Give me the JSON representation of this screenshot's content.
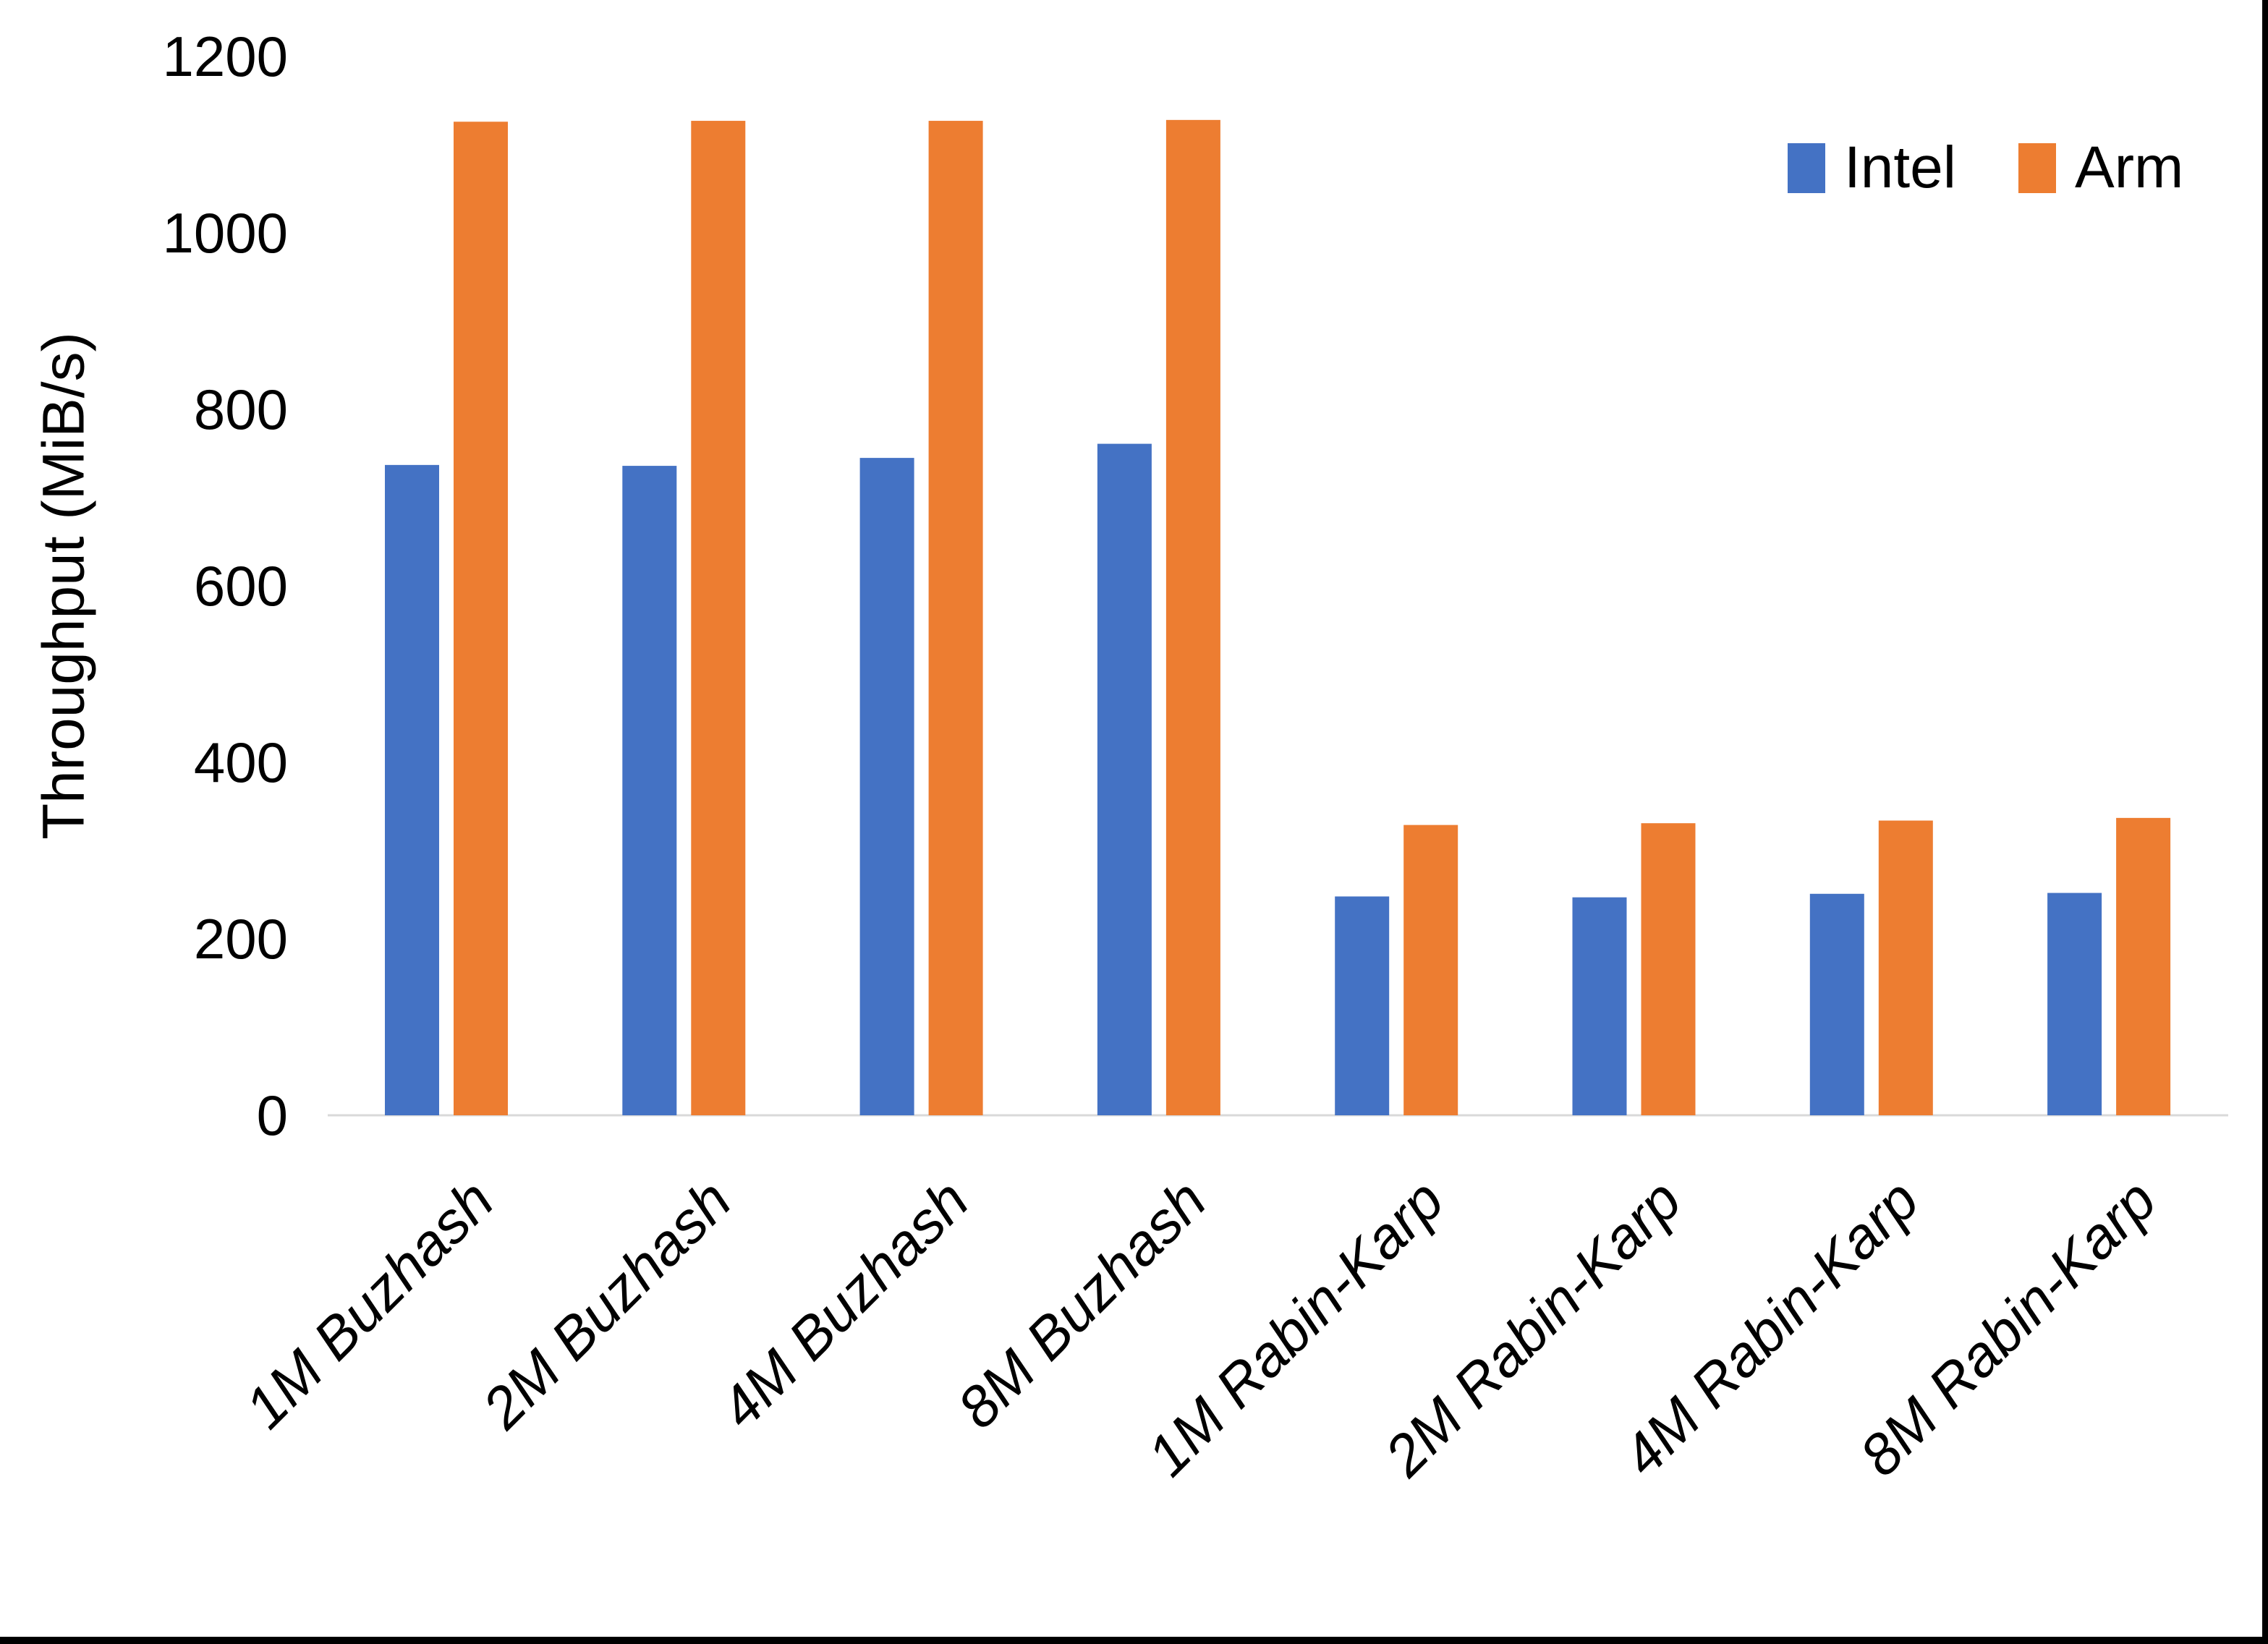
{
  "chart_data": {
    "type": "bar",
    "title": "",
    "categories": [
      "1M Buzhash",
      "2M Buzhash",
      "4M Buzhash",
      "8M Buzhash",
      "1M Rabin-Karp",
      "2M Rabin-Karp",
      "4M Rabin-Karp",
      "8M Rabin-Karp"
    ],
    "series": [
      {
        "name": "Intel",
        "color": "#4472C4",
        "values": [
          737,
          736,
          745,
          761,
          248,
          247,
          251,
          252
        ]
      },
      {
        "name": "Arm",
        "color": "#ED7D31",
        "values": [
          1126,
          1127,
          1127,
          1128,
          329,
          331,
          334,
          337
        ]
      }
    ],
    "xlabel": "",
    "ylabel": "Throughput (MiB/s)",
    "ylim": [
      0,
      1200
    ],
    "yticks": [
      0,
      200,
      400,
      600,
      800,
      1000,
      1200
    ],
    "grid": false,
    "legend_position": "top-right",
    "axis_line_color": "#D9D9D9",
    "text_color": "#000000"
  }
}
